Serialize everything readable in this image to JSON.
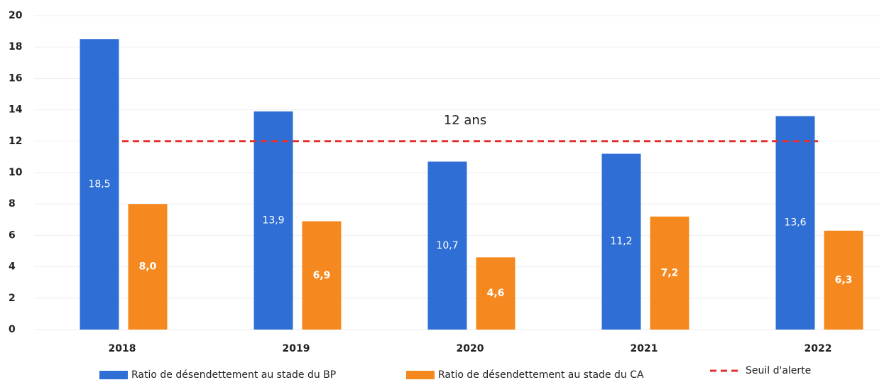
{
  "chart_data": {
    "type": "bar",
    "categories": [
      "2018",
      "2019",
      "2020",
      "2021",
      "2022"
    ],
    "series": [
      {
        "name": "Ratio de désendettement au stade du BP",
        "color": "#2f6fd5",
        "values": [
          18.5,
          13.9,
          10.7,
          11.2,
          13.6
        ],
        "value_labels": [
          "18,5",
          "13,9",
          "10,7",
          "11,2",
          "13,6"
        ]
      },
      {
        "name": "Ratio de désendettement au stade du CA",
        "color": "#f5891f",
        "values": [
          8.0,
          6.9,
          4.6,
          7.2,
          6.3
        ],
        "value_labels": [
          "8,0",
          "6,9",
          "4,6",
          "7,2",
          "6,3"
        ]
      }
    ],
    "threshold": {
      "name": "Seuil d'alerte",
      "value": 12,
      "color": "#e3302e",
      "annotation": "12 ans"
    },
    "ylim": [
      0,
      20
    ],
    "yticks": [
      0,
      2,
      4,
      6,
      8,
      10,
      12,
      14,
      16,
      18,
      20
    ],
    "grid": true
  }
}
